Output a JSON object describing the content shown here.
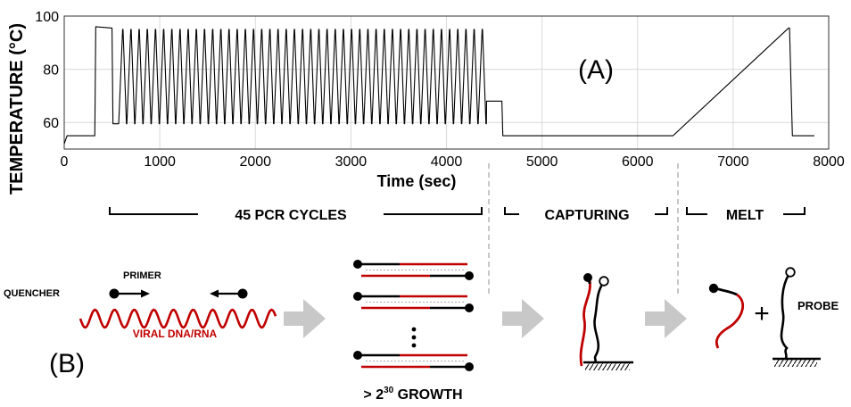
{
  "chart_data": {
    "type": "line",
    "title": "",
    "panel_label": "(A)",
    "xlabel": "Time (sec)",
    "ylabel": "TEMPERATURE (°C)",
    "xlim": [
      0,
      8000
    ],
    "ylim": [
      50,
      100
    ],
    "x_ticks": [
      0,
      1000,
      2000,
      3000,
      4000,
      5000,
      6000,
      7000,
      8000
    ],
    "y_ticks": [
      60,
      80,
      100
    ],
    "grid": true,
    "series": [
      {
        "name": "",
        "color": "#000000",
        "segments": [
          {
            "kind": "points",
            "points": [
              [
                0,
                52
              ],
              [
                30,
                55
              ],
              [
                320,
                55
              ],
              [
                330,
                96
              ],
              [
                500,
                95.5
              ],
              [
                510,
                59.5
              ],
              [
                570,
                59.5
              ]
            ]
          },
          {
            "kind": "cycles",
            "start": 570,
            "period": 85.5,
            "count": 45,
            "high": 95,
            "low": 59.5,
            "up": 0.48,
            "hold": 0.05,
            "down": 0.42
          },
          {
            "kind": "points",
            "points": [
              [
                4418,
                59.5
              ],
              [
                4420,
                68
              ],
              [
                4580,
                68
              ],
              [
                4590,
                55
              ],
              [
                6370,
                55
              ],
              [
                7580,
                95.5
              ],
              [
                7590,
                95.5
              ],
              [
                7620,
                55
              ],
              [
                7850,
                55
              ]
            ]
          }
        ]
      }
    ]
  },
  "phases": {
    "pcr": "45 PCR CYCLES",
    "capturing": "CAPTURING",
    "melt": "MELT"
  },
  "diagram": {
    "panel_label": "(B)",
    "quencher": "QUENCHER",
    "primer": "PRIMER",
    "viral": "VIRAL DNA/RNA",
    "growth_prefix": "> 2",
    "growth_exp": "30",
    "growth_suffix": " GROWTH",
    "plus": "+",
    "probe": "PROBE"
  },
  "colors": {
    "red": "#c00000",
    "arrow": "#c8c8c8",
    "grid": "#d9d9d9",
    "ink": "#000000",
    "dash": "#aaaaaa"
  }
}
